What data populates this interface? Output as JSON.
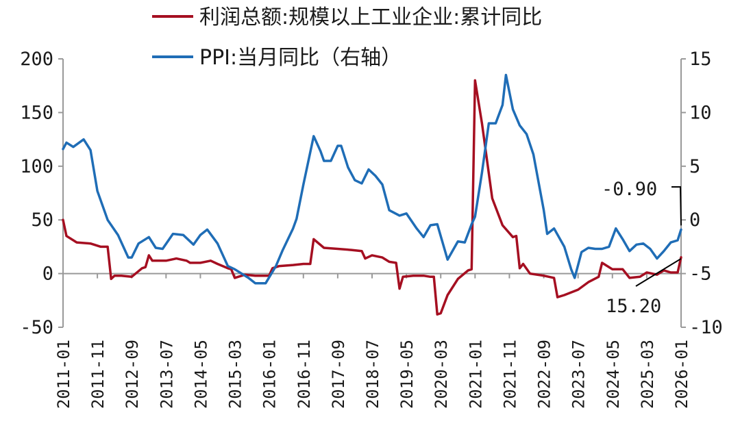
{
  "chart_data": {
    "type": "line",
    "legend": {
      "placement": "top",
      "entries": [
        {
          "label": "利润总额:规模以上工业企业:累计同比",
          "color": "#a50f21"
        },
        {
          "label": "PPI:当月同比（右轴）",
          "color": "#1f6db6"
        }
      ]
    },
    "left_axis": {
      "ylim": [
        -50,
        200
      ],
      "ticks": [
        "200",
        "150",
        "100",
        "50",
        "0",
        "-50"
      ]
    },
    "right_axis": {
      "ylim": [
        -10,
        15
      ],
      "ticks": [
        "15",
        "10",
        "5",
        "0",
        "-5",
        "-10"
      ]
    },
    "x_ticks": [
      "2011-01",
      "2011-11",
      "2012-09",
      "2013-07",
      "2014-05",
      "2015-03",
      "2016-01",
      "2016-11",
      "2017-09",
      "2018-07",
      "2019-05",
      "2020-03",
      "2021-01",
      "2021-11",
      "2022-09",
      "2023-07",
      "2024-05",
      "2025-03",
      "2026-01"
    ],
    "x_range": [
      "2011-01",
      "2026-01"
    ],
    "annotations": [
      {
        "text": "-0.90",
        "series": "PPI:当月同比（右轴）"
      },
      {
        "text": "15.20",
        "series": "利润总额:规模以上工业企业:累计同比"
      }
    ],
    "series": [
      {
        "name": "利润总额:规模以上工业企业:累计同比",
        "axis": "left",
        "color": "#a50f21",
        "points": [
          [
            "2011-01",
            50
          ],
          [
            "2011-02",
            35
          ],
          [
            "2011-05",
            29
          ],
          [
            "2011-09",
            28
          ],
          [
            "2011-12",
            25
          ],
          [
            "2012-02",
            25
          ],
          [
            "2012-03",
            -5
          ],
          [
            "2012-04",
            -2
          ],
          [
            "2012-06",
            -2
          ],
          [
            "2012-09",
            -3
          ],
          [
            "2012-12",
            5
          ],
          [
            "2013-01",
            6
          ],
          [
            "2013-02",
            17
          ],
          [
            "2013-03",
            12
          ],
          [
            "2013-07",
            12
          ],
          [
            "2013-10",
            14
          ],
          [
            "2014-01",
            12
          ],
          [
            "2014-02",
            10
          ],
          [
            "2014-05",
            10
          ],
          [
            "2014-08",
            12
          ],
          [
            "2014-10",
            9
          ],
          [
            "2015-01",
            5
          ],
          [
            "2015-02",
            4
          ],
          [
            "2015-03",
            -4
          ],
          [
            "2015-06",
            -1
          ],
          [
            "2015-09",
            -2
          ],
          [
            "2015-12",
            -2
          ],
          [
            "2016-01",
            -2
          ],
          [
            "2016-02",
            5
          ],
          [
            "2016-04",
            7
          ],
          [
            "2016-08",
            8
          ],
          [
            "2016-11",
            9
          ],
          [
            "2017-01",
            9
          ],
          [
            "2017-02",
            32
          ],
          [
            "2017-05",
            24
          ],
          [
            "2017-09",
            23
          ],
          [
            "2018-01",
            22
          ],
          [
            "2018-04",
            21
          ],
          [
            "2018-05",
            14
          ],
          [
            "2018-07",
            17
          ],
          [
            "2018-10",
            15
          ],
          [
            "2018-12",
            11
          ],
          [
            "2019-02",
            10
          ],
          [
            "2019-03",
            -14
          ],
          [
            "2019-04",
            -3
          ],
          [
            "2019-07",
            -2
          ],
          [
            "2019-10",
            -2
          ],
          [
            "2019-12",
            -3
          ],
          [
            "2020-01",
            -3
          ],
          [
            "2020-02",
            -38
          ],
          [
            "2020-03",
            -37
          ],
          [
            "2020-05",
            -20
          ],
          [
            "2020-08",
            -5
          ],
          [
            "2020-11",
            3
          ],
          [
            "2020-12",
            4
          ],
          [
            "2021-01",
            180
          ],
          [
            "2021-03",
            140
          ],
          [
            "2021-06",
            70
          ],
          [
            "2021-09",
            45
          ],
          [
            "2021-12",
            34
          ],
          [
            "2022-01",
            35
          ],
          [
            "2022-02",
            5
          ],
          [
            "2022-03",
            9
          ],
          [
            "2022-05",
            0
          ],
          [
            "2022-09",
            -2
          ],
          [
            "2022-12",
            -4
          ],
          [
            "2023-01",
            -22
          ],
          [
            "2023-03",
            -20
          ],
          [
            "2023-07",
            -15
          ],
          [
            "2023-10",
            -8
          ],
          [
            "2024-01",
            -3
          ],
          [
            "2024-02",
            10
          ],
          [
            "2024-05",
            4
          ],
          [
            "2024-08",
            4
          ],
          [
            "2024-10",
            -4
          ],
          [
            "2025-01",
            -3
          ],
          [
            "2025-03",
            1
          ],
          [
            "2025-06",
            -1
          ],
          [
            "2025-08",
            3
          ],
          [
            "2025-10",
            1
          ],
          [
            "2025-12",
            1
          ],
          [
            "2026-01",
            15.2
          ]
        ]
      },
      {
        "name": "PPI:当月同比（右轴）",
        "axis": "right",
        "color": "#1f6db6",
        "points": [
          [
            "2011-01",
            6.6
          ],
          [
            "2011-02",
            7.2
          ],
          [
            "2011-04",
            6.8
          ],
          [
            "2011-07",
            7.5
          ],
          [
            "2011-09",
            6.5
          ],
          [
            "2011-11",
            2.7
          ],
          [
            "2012-02",
            0
          ],
          [
            "2012-05",
            -1.4
          ],
          [
            "2012-08",
            -3.5
          ],
          [
            "2012-09",
            -3.5
          ],
          [
            "2012-11",
            -2.2
          ],
          [
            "2013-02",
            -1.6
          ],
          [
            "2013-04",
            -2.6
          ],
          [
            "2013-06",
            -2.7
          ],
          [
            "2013-09",
            -1.3
          ],
          [
            "2013-12",
            -1.4
          ],
          [
            "2014-03",
            -2.3
          ],
          [
            "2014-05",
            -1.4
          ],
          [
            "2014-07",
            -0.9
          ],
          [
            "2014-10",
            -2.2
          ],
          [
            "2015-01",
            -4.3
          ],
          [
            "2015-03",
            -4.6
          ],
          [
            "2015-07",
            -5.4
          ],
          [
            "2015-09",
            -5.9
          ],
          [
            "2015-12",
            -5.9
          ],
          [
            "2016-03",
            -4.3
          ],
          [
            "2016-05",
            -2.8
          ],
          [
            "2016-08",
            -0.8
          ],
          [
            "2016-09",
            0.1
          ],
          [
            "2016-11",
            3.3
          ],
          [
            "2017-02",
            7.8
          ],
          [
            "2017-04",
            6.4
          ],
          [
            "2017-05",
            5.5
          ],
          [
            "2017-07",
            5.5
          ],
          [
            "2017-09",
            6.9
          ],
          [
            "2017-10",
            6.9
          ],
          [
            "2017-12",
            4.9
          ],
          [
            "2018-02",
            3.7
          ],
          [
            "2018-04",
            3.4
          ],
          [
            "2018-06",
            4.7
          ],
          [
            "2018-08",
            4.1
          ],
          [
            "2018-10",
            3.3
          ],
          [
            "2018-12",
            0.9
          ],
          [
            "2019-03",
            0.4
          ],
          [
            "2019-05",
            0.6
          ],
          [
            "2019-08",
            -0.8
          ],
          [
            "2019-10",
            -1.6
          ],
          [
            "2019-12",
            -0.5
          ],
          [
            "2020-02",
            -0.4
          ],
          [
            "2020-03",
            -1.5
          ],
          [
            "2020-05",
            -3.7
          ],
          [
            "2020-08",
            -2.0
          ],
          [
            "2020-10",
            -2.1
          ],
          [
            "2020-12",
            -0.4
          ],
          [
            "2021-01",
            0.3
          ],
          [
            "2021-03",
            4.4
          ],
          [
            "2021-05",
            9.0
          ],
          [
            "2021-07",
            9.0
          ],
          [
            "2021-09",
            10.7
          ],
          [
            "2021-10",
            13.5
          ],
          [
            "2021-12",
            10.3
          ],
          [
            "2022-02",
            8.8
          ],
          [
            "2022-04",
            8.0
          ],
          [
            "2022-06",
            6.1
          ],
          [
            "2022-09",
            0.9
          ],
          [
            "2022-10",
            -1.3
          ],
          [
            "2022-12",
            -0.8
          ],
          [
            "2023-03",
            -2.5
          ],
          [
            "2023-05",
            -4.6
          ],
          [
            "2023-06",
            -5.4
          ],
          [
            "2023-08",
            -3.0
          ],
          [
            "2023-10",
            -2.6
          ],
          [
            "2023-12",
            -2.7
          ],
          [
            "2024-02",
            -2.7
          ],
          [
            "2024-04",
            -2.5
          ],
          [
            "2024-06",
            -0.8
          ],
          [
            "2024-08",
            -1.8
          ],
          [
            "2024-10",
            -2.9
          ],
          [
            "2024-12",
            -2.3
          ],
          [
            "2025-02",
            -2.2
          ],
          [
            "2025-04",
            -2.7
          ],
          [
            "2025-06",
            -3.6
          ],
          [
            "2025-08",
            -2.9
          ],
          [
            "2025-10",
            -2.1
          ],
          [
            "2025-12",
            -1.9
          ],
          [
            "2026-01",
            -0.9
          ]
        ]
      }
    ]
  }
}
